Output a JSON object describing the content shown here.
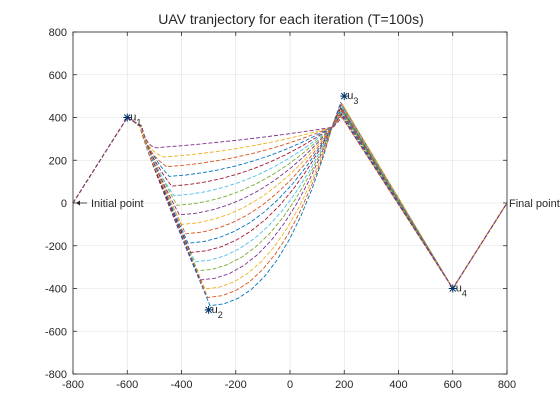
{
  "chart_data": {
    "type": "line",
    "title": "UAV tranjectory for each iteration (T=100s)",
    "xlabel": "",
    "ylabel": "",
    "xlim": [
      -800,
      800
    ],
    "ylim": [
      -800,
      800
    ],
    "grid": true,
    "x_ticks": [
      -800,
      -600,
      -400,
      -200,
      0,
      200,
      400,
      600,
      800
    ],
    "y_ticks": [
      -800,
      -600,
      -400,
      -200,
      0,
      200,
      400,
      600,
      800
    ],
    "x_tick_labels": [
      "-800",
      "-600",
      "-400",
      "-200",
      "0",
      "200",
      "400",
      "600",
      "800"
    ],
    "y_tick_labels": [
      "-800",
      "-600",
      "-400",
      "-200",
      "0",
      "200",
      "400",
      "600",
      "800"
    ],
    "path_waypoints": [
      {
        "label": "Initial point",
        "x": -800,
        "y": 0
      },
      {
        "label": "u1",
        "x": -600,
        "y": 400
      },
      {
        "label": "u2",
        "x": -300,
        "y": -500
      },
      {
        "label": "u3",
        "x": 200,
        "y": 500
      },
      {
        "label": "u4",
        "x": 600,
        "y": -400
      },
      {
        "label": "Final point",
        "x": 800,
        "y": 0
      }
    ],
    "users": [
      {
        "name": "u",
        "sub": "1",
        "x": -600,
        "y": 400
      },
      {
        "name": "u",
        "sub": "2",
        "x": -300,
        "y": -500
      },
      {
        "name": "u",
        "sub": "3",
        "x": 200,
        "y": 500
      },
      {
        "name": "u",
        "sub": "4",
        "x": 600,
        "y": -400
      }
    ],
    "endpoint_labels": [
      {
        "text": "Initial point",
        "x": -800,
        "y": 0
      },
      {
        "text": "Final point",
        "x": 800,
        "y": 0
      }
    ],
    "iterations": 18,
    "line_style": "dashed",
    "series_colors": [
      "#0072BD",
      "#D95319",
      "#EDB120",
      "#7E2F8E",
      "#77AC30",
      "#4DBEEE",
      "#A2142F"
    ]
  }
}
